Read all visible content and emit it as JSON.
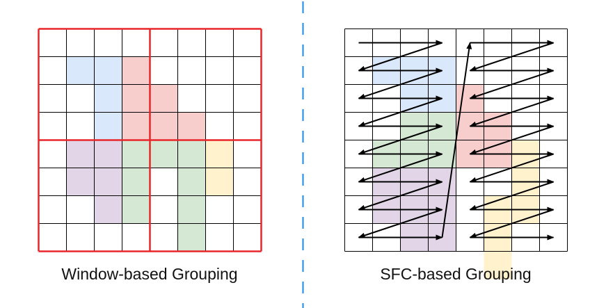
{
  "left_panel": {
    "caption": "Window-based Grouping",
    "grid_size": 8,
    "window_size": 4,
    "window_border_color": "#e8262a",
    "regions": [
      {
        "name": "blue",
        "color": "#dae8fc",
        "cells": [
          [
            1,
            1
          ],
          [
            1,
            2
          ],
          [
            2,
            2
          ],
          [
            3,
            2
          ]
        ]
      },
      {
        "name": "red",
        "color": "#f8cecc",
        "cells": [
          [
            1,
            3
          ],
          [
            2,
            3
          ],
          [
            2,
            4
          ],
          [
            3,
            3
          ],
          [
            3,
            4
          ],
          [
            3,
            5
          ]
        ]
      },
      {
        "name": "purple",
        "color": "#e1d5e7",
        "cells": [
          [
            4,
            1
          ],
          [
            4,
            2
          ],
          [
            5,
            1
          ],
          [
            5,
            2
          ],
          [
            6,
            2
          ]
        ]
      },
      {
        "name": "green",
        "color": "#d5e8d4",
        "cells": [
          [
            4,
            3
          ],
          [
            4,
            4
          ],
          [
            4,
            5
          ],
          [
            5,
            3
          ],
          [
            5,
            5
          ],
          [
            6,
            3
          ],
          [
            6,
            5
          ],
          [
            7,
            5
          ]
        ]
      },
      {
        "name": "yellow",
        "color": "#fff2cc",
        "cells": [
          [
            4,
            6
          ],
          [
            5,
            6
          ]
        ]
      }
    ]
  },
  "right_panel": {
    "caption": "SFC-based Grouping",
    "grid_size": 8,
    "scan_halves": 2,
    "regions": [
      {
        "name": "blue",
        "color": "#dae8fc",
        "cells": [
          [
            1,
            1
          ],
          [
            1,
            2
          ],
          [
            1,
            3
          ],
          [
            2,
            2
          ],
          [
            2,
            3
          ]
        ]
      },
      {
        "name": "red",
        "color": "#f8cecc",
        "cells": [
          [
            2,
            4
          ],
          [
            3,
            4
          ],
          [
            3,
            5
          ],
          [
            4,
            4
          ],
          [
            4,
            5
          ]
        ]
      },
      {
        "name": "green",
        "color": "#d5e8d4",
        "cells": [
          [
            3,
            2
          ],
          [
            3,
            3
          ],
          [
            4,
            1
          ],
          [
            4,
            2
          ],
          [
            4,
            3
          ]
        ]
      },
      {
        "name": "purple",
        "color": "#e1d5e7",
        "cells": [
          [
            5,
            1
          ],
          [
            5,
            2
          ],
          [
            5,
            3
          ],
          [
            6,
            1
          ],
          [
            6,
            2
          ],
          [
            6,
            3
          ],
          [
            7,
            2
          ],
          [
            7,
            3
          ]
        ]
      },
      {
        "name": "yellow",
        "color": "#fff2cc",
        "cells": [
          [
            4,
            6
          ],
          [
            5,
            6
          ],
          [
            6,
            5
          ],
          [
            6,
            6
          ],
          [
            7,
            5
          ],
          [
            8,
            5
          ]
        ]
      }
    ]
  },
  "divider_color": "#1a8be8",
  "grid_line_color": "#000000",
  "arrow_color": "#000000"
}
